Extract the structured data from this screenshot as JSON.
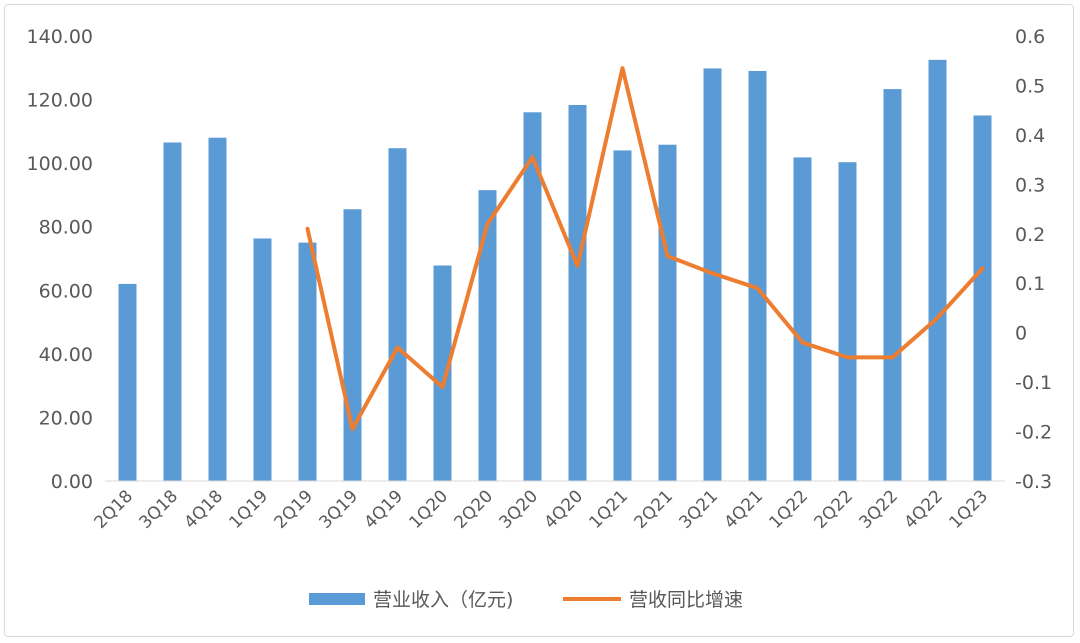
{
  "chart_data": {
    "type": "bar+line",
    "categories": [
      "2Q18",
      "3Q18",
      "4Q18",
      "1Q19",
      "2Q19",
      "3Q19",
      "4Q19",
      "1Q20",
      "2Q20",
      "3Q20",
      "4Q20",
      "1Q21",
      "2Q21",
      "3Q21",
      "4Q21",
      "1Q22",
      "2Q22",
      "3Q22",
      "4Q22",
      "1Q23"
    ],
    "series": [
      {
        "name": "营业收入（亿元)",
        "type": "bar",
        "axis": "left",
        "color": "#5b9bd5",
        "values": [
          62.0,
          106.5,
          108.0,
          76.3,
          75.0,
          85.5,
          104.7,
          67.8,
          91.5,
          116.0,
          118.3,
          104.0,
          105.8,
          129.8,
          129.0,
          101.8,
          100.3,
          123.3,
          132.5,
          115.0
        ]
      },
      {
        "name": "营收同比增速",
        "type": "line",
        "axis": "right",
        "color": "#ed7d31",
        "values": [
          null,
          null,
          null,
          null,
          0.21,
          -0.195,
          -0.03,
          -0.11,
          0.22,
          0.355,
          0.135,
          0.535,
          0.155,
          0.12,
          0.09,
          -0.02,
          -0.05,
          -0.05,
          0.03,
          0.13
        ]
      }
    ],
    "ylim_left": [
      0,
      140
    ],
    "yticks_left": [
      "0.00",
      "20.00",
      "40.00",
      "60.00",
      "80.00",
      "100.00",
      "120.00",
      "140.00"
    ],
    "ylim_right": [
      -0.3,
      0.6
    ],
    "yticks_right": [
      "-0.3",
      "-0.2",
      "-0.1",
      "0",
      "0.1",
      "0.2",
      "0.3",
      "0.4",
      "0.5",
      "0.6"
    ],
    "grid": false,
    "legend_position": "bottom"
  }
}
